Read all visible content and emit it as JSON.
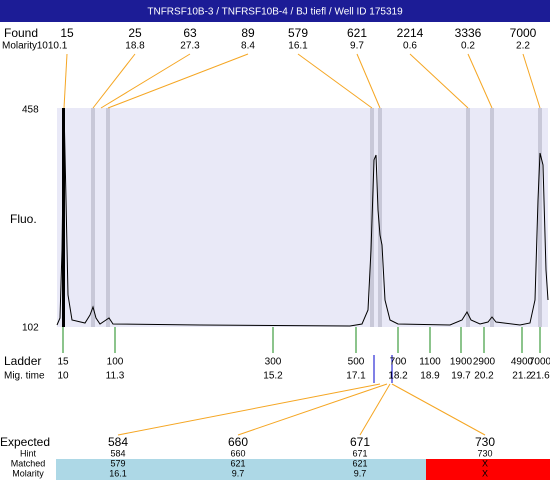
{
  "title": "TNFRSF10B-3 / TNFRSF10B-4 / BJ tiefl / Well ID 175319",
  "found": {
    "label": "Found",
    "values": [
      15,
      25,
      63,
      89,
      579,
      621,
      2214,
      3336,
      7000
    ]
  },
  "found_molarity": {
    "label": "Molarity",
    "values": [
      "1010.1",
      18.8,
      27.3,
      8.4,
      16.1,
      9.7,
      0.6,
      0.2,
      2.2
    ]
  },
  "y_axis": {
    "label": "Fluo.",
    "top": 458,
    "bottom": 102
  },
  "ladder": {
    "label": "Ladder",
    "values": [
      15,
      100,
      300,
      500,
      700,
      1100,
      1900,
      2900,
      4900,
      7000
    ]
  },
  "mig_time": {
    "label": "Mig. time",
    "values": [
      10,
      11.3,
      15.2,
      17.1,
      18.2,
      18.9,
      19.7,
      20.2,
      21.2,
      21.6
    ]
  },
  "expected": {
    "label": "Expected",
    "values": [
      584,
      660,
      671,
      730
    ]
  },
  "hint": {
    "label": "Hint",
    "values": [
      584,
      660,
      671,
      730
    ]
  },
  "matched": {
    "label": "Matched",
    "values": [
      579,
      621,
      621,
      "X"
    ]
  },
  "matched_molarity": {
    "label": "Molarity",
    "values": [
      16.1,
      9.7,
      9.7,
      "X"
    ]
  }
}
